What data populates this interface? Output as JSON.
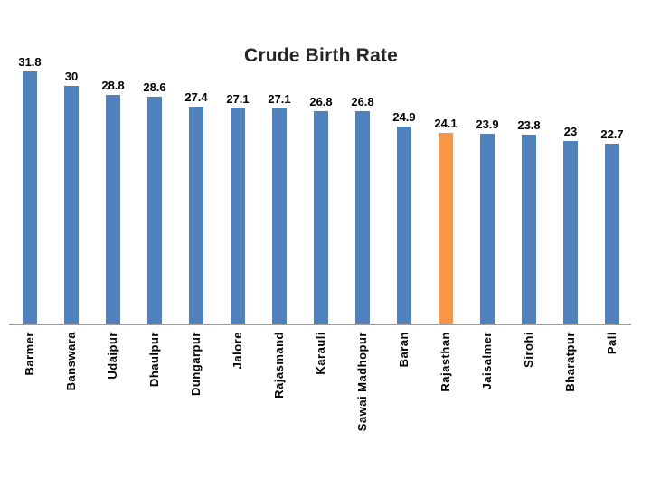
{
  "colors": {
    "bar": "#4F81BD",
    "highlight": "#F79646",
    "axis": "#9E9E9E",
    "title_text": "#262626",
    "label_text": "#000000",
    "background": "#FFFFFF"
  },
  "chart_data": {
    "type": "bar",
    "title": "Crude Birth Rate",
    "xlabel": "",
    "ylabel": "",
    "ylim": [
      0,
      33
    ],
    "grid": false,
    "legend": "none",
    "axis_rendered": "baseline-only",
    "category_label_rotation": 90,
    "categories": [
      "Barmer",
      "Banswara",
      "Udaipur",
      "Dhaulpur",
      "Dungarpur",
      "Jalore",
      "Rajasmand",
      "Karauli",
      "Sawai Madhopur",
      "Baran",
      "Rajasthan",
      "Jaisalmer",
      "Sirohi",
      "Bharatpur",
      "Pali"
    ],
    "values": [
      31.8,
      30,
      28.8,
      28.6,
      27.4,
      27.1,
      27.1,
      26.8,
      26.8,
      24.9,
      24.1,
      23.9,
      23.8,
      23,
      22.7
    ],
    "data_labels": [
      "31.8",
      "30",
      "28.8",
      "28.6",
      "27.4",
      "27.1",
      "27.1",
      "26.8",
      "26.8",
      "24.9",
      "24.1",
      "23.9",
      "23.8",
      "23",
      "22.7"
    ],
    "highlighted_category": "Rajasthan"
  }
}
